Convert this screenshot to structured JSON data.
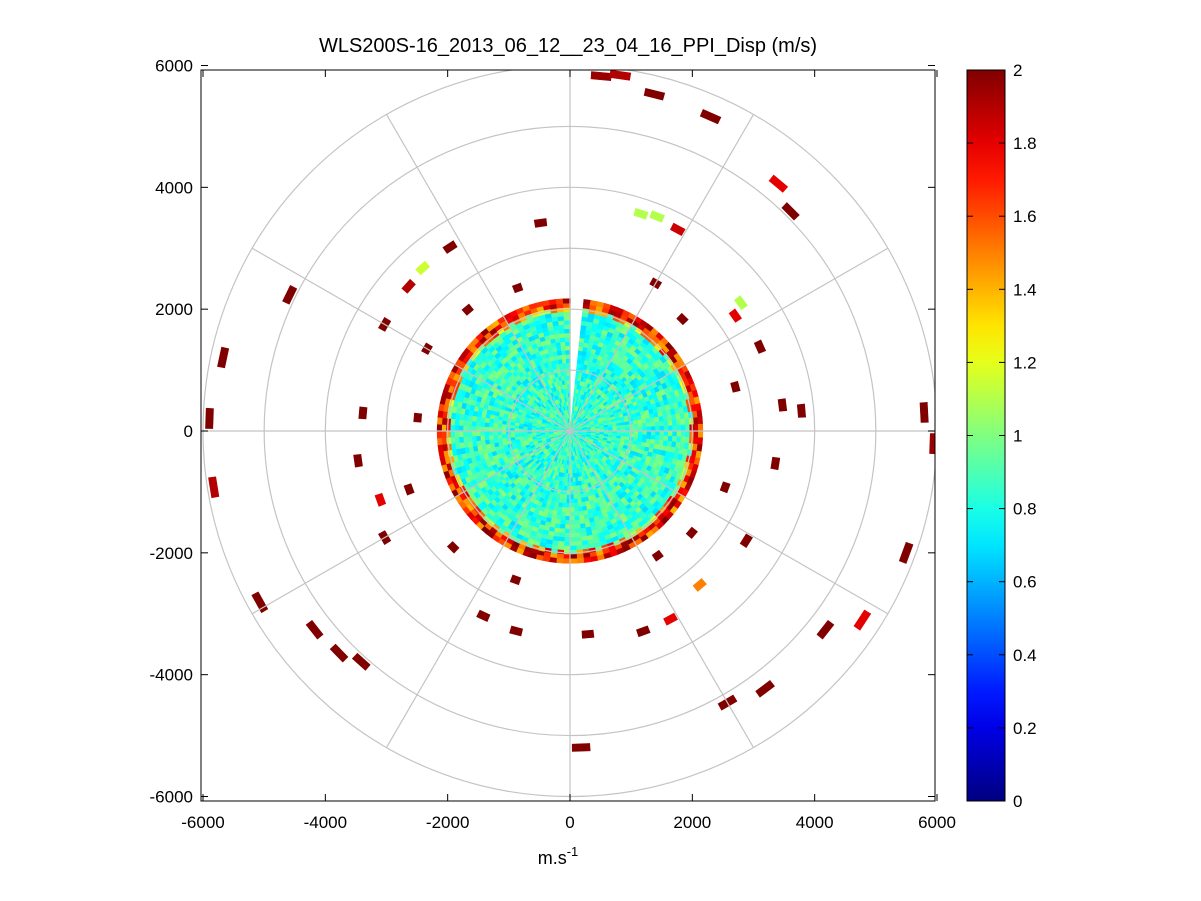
{
  "chart_data": {
    "type": "heatmap",
    "subtype": "polar_ppi",
    "title": "WLS200S-16_2013_06_12__23_04_16_PPI_Disp (m/s)",
    "xlabel_base": "m.s",
    "xlabel_sup": "-1",
    "xlim": [
      -6000,
      6000
    ],
    "ylim": [
      -6000,
      6000
    ],
    "xticks": [
      "-6000",
      "-4000",
      "-2000",
      "0",
      "2000",
      "4000",
      "6000"
    ],
    "yticks": [
      "6000",
      "4000",
      "2000",
      "0",
      "-2000",
      "-4000",
      "-6000"
    ],
    "range_rings": [
      1000,
      2000,
      3000,
      4000,
      5000,
      6000
    ],
    "spoke_angles_deg": [
      0,
      30,
      60,
      90,
      120,
      150,
      180,
      210,
      240,
      270,
      300,
      330
    ],
    "colorbar": {
      "min": 0,
      "max": 2,
      "ticks": [
        "2",
        "1.8",
        "1.6",
        "1.4",
        "1.2",
        "1",
        "0.8",
        "0.6",
        "0.4",
        "0.2",
        "0"
      ],
      "colormap": "jet"
    },
    "dense_region": {
      "radius_max": 2150,
      "typical_value": 0.85,
      "gap_azimuth_deg": [
        0,
        6
      ]
    },
    "scatter_segments": [
      {
        "r": 5850,
        "az": 5,
        "v": 1.95
      },
      {
        "r": 5900,
        "az": 8,
        "v": 1.9
      },
      {
        "r": 5700,
        "az": 14,
        "v": 2.0
      },
      {
        "r": 5650,
        "az": 24,
        "v": 2.0
      },
      {
        "r": 5300,
        "az": 40,
        "v": 1.8
      },
      {
        "r": 5100,
        "az": 45,
        "v": 2.0
      },
      {
        "r": 5800,
        "az": 87,
        "v": 2.0
      },
      {
        "r": 5950,
        "az": 92,
        "v": 1.95
      },
      {
        "r": 5850,
        "az": 110,
        "v": 2.0
      },
      {
        "r": 5700,
        "az": 123,
        "v": 1.8
      },
      {
        "r": 5300,
        "az": 128,
        "v": 2.0
      },
      {
        "r": 5300,
        "az": 143,
        "v": 2.0
      },
      {
        "r": 5150,
        "az": 150,
        "v": 2.0
      },
      {
        "r": 5200,
        "az": 178,
        "v": 2.0
      },
      {
        "r": 5100,
        "az": 222,
        "v": 2.0
      },
      {
        "r": 5250,
        "az": 226,
        "v": 2.0
      },
      {
        "r": 5800,
        "az": 241,
        "v": 2.0
      },
      {
        "r": 5300,
        "az": 232,
        "v": 2.0
      },
      {
        "r": 5900,
        "az": 261,
        "v": 1.9
      },
      {
        "r": 5900,
        "az": 272,
        "v": 2.0
      },
      {
        "r": 5800,
        "az": 282,
        "v": 2.0
      },
      {
        "r": 5100,
        "az": 296,
        "v": 2.0
      },
      {
        "r": 3750,
        "az": 18,
        "v": 1.1
      },
      {
        "r": 3800,
        "az": 22,
        "v": 1.1
      },
      {
        "r": 3750,
        "az": 28,
        "v": 1.85
      },
      {
        "r": 3500,
        "az": 53,
        "v": 1.1
      },
      {
        "r": 3300,
        "az": 55,
        "v": 1.8
      },
      {
        "r": 3400,
        "az": 66,
        "v": 2.0
      },
      {
        "r": 3800,
        "az": 85,
        "v": 2.0
      },
      {
        "r": 3500,
        "az": 83,
        "v": 2.0
      },
      {
        "r": 3400,
        "az": 99,
        "v": 2.0
      },
      {
        "r": 3400,
        "az": 122,
        "v": 2.0
      },
      {
        "r": 3300,
        "az": 140,
        "v": 1.5
      },
      {
        "r": 3500,
        "az": 152,
        "v": 1.8
      },
      {
        "r": 3500,
        "az": 160,
        "v": 2.0
      },
      {
        "r": 3350,
        "az": 175,
        "v": 2.0
      },
      {
        "r": 3400,
        "az": 195,
        "v": 2.0
      },
      {
        "r": 3350,
        "az": 205,
        "v": 2.0
      },
      {
        "r": 3500,
        "az": 240,
        "v": 2.0
      },
      {
        "r": 3300,
        "az": 250,
        "v": 1.8
      },
      {
        "r": 3500,
        "az": 262,
        "v": 2.0
      },
      {
        "r": 3400,
        "az": 275,
        "v": 2.0
      },
      {
        "r": 3500,
        "az": 300,
        "v": 2.0
      },
      {
        "r": 3550,
        "az": 312,
        "v": 1.9
      },
      {
        "r": 3600,
        "az": 318,
        "v": 1.15
      },
      {
        "r": 3600,
        "az": 327,
        "v": 2.0
      },
      {
        "r": 3450,
        "az": 352,
        "v": 2.0
      },
      {
        "r": 2800,
        "az": 30,
        "v": 2.0
      },
      {
        "r": 2600,
        "az": 45,
        "v": 2.0
      },
      {
        "r": 2800,
        "az": 75,
        "v": 2.0
      },
      {
        "r": 2700,
        "az": 110,
        "v": 2.0
      },
      {
        "r": 2600,
        "az": 130,
        "v": 2.0
      },
      {
        "r": 2500,
        "az": 145,
        "v": 2.0
      },
      {
        "r": 2600,
        "az": 200,
        "v": 2.0
      },
      {
        "r": 2700,
        "az": 225,
        "v": 2.0
      },
      {
        "r": 2800,
        "az": 250,
        "v": 2.0
      },
      {
        "r": 2500,
        "az": 275,
        "v": 2.0
      },
      {
        "r": 2700,
        "az": 300,
        "v": 2.0
      },
      {
        "r": 2600,
        "az": 320,
        "v": 2.0
      },
      {
        "r": 2500,
        "az": 340,
        "v": 2.0
      }
    ]
  }
}
